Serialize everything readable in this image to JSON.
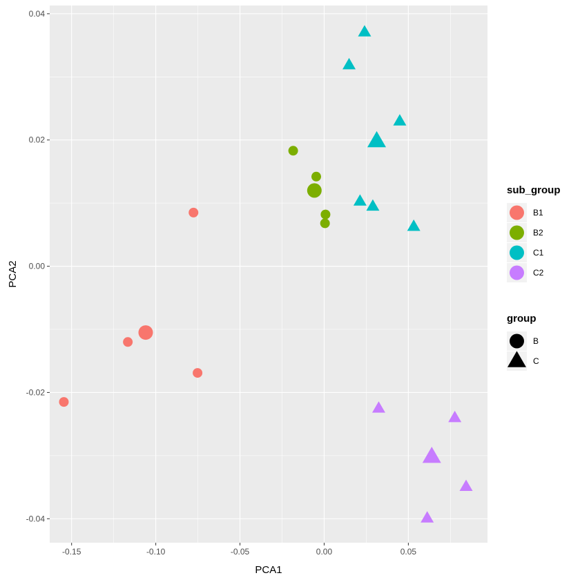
{
  "chart_data": {
    "type": "scatter",
    "xlabel": "PCA1",
    "ylabel": "PCA2",
    "xlim": [
      -0.163,
      0.097
    ],
    "ylim": [
      -0.0438,
      0.0413
    ],
    "x_ticks": [
      -0.15,
      -0.1,
      -0.05,
      0.0,
      0.05
    ],
    "x_tick_labels": [
      "-0.15",
      "-0.10",
      "-0.05",
      "0.00",
      "0.05"
    ],
    "y_ticks": [
      -0.04,
      -0.02,
      0.0,
      0.02,
      0.04
    ],
    "y_tick_labels": [
      "-0.04",
      "-0.02",
      "0.00",
      "0.02",
      "0.04"
    ],
    "grid": true,
    "panel_background": "#ebebeb",
    "legends": [
      {
        "title": "sub_group",
        "kind": "color",
        "entries": [
          {
            "label": "B1",
            "color": "#f8766d"
          },
          {
            "label": "B2",
            "color": "#7cae00"
          },
          {
            "label": "C1",
            "color": "#00bfc4"
          },
          {
            "label": "C2",
            "color": "#c77cff"
          }
        ]
      },
      {
        "title": "group",
        "kind": "shape",
        "entries": [
          {
            "label": "B",
            "shape": "circle"
          },
          {
            "label": "C",
            "shape": "triangle"
          }
        ]
      }
    ],
    "series": [
      {
        "sub_group": "B1",
        "group": "B",
        "shape": "circle",
        "color": "#f8766d",
        "points": [
          {
            "x": -0.1546,
            "y": -0.0215,
            "size": "small"
          },
          {
            "x": -0.1166,
            "y": -0.012,
            "size": "small"
          },
          {
            "x": -0.106,
            "y": -0.0105,
            "size": "large"
          },
          {
            "x": -0.0776,
            "y": 0.0085,
            "size": "small"
          },
          {
            "x": -0.0752,
            "y": -0.0169,
            "size": "small"
          }
        ]
      },
      {
        "sub_group": "B2",
        "group": "B",
        "shape": "circle",
        "color": "#7cae00",
        "points": [
          {
            "x": -0.0184,
            "y": 0.0183,
            "size": "small"
          },
          {
            "x": -0.0047,
            "y": 0.0142,
            "size": "small"
          },
          {
            "x": -0.0058,
            "y": 0.012,
            "size": "large"
          },
          {
            "x": 0.0008,
            "y": 0.0082,
            "size": "small"
          },
          {
            "x": 0.0005,
            "y": 0.0068,
            "size": "small"
          }
        ]
      },
      {
        "sub_group": "C1",
        "group": "C",
        "shape": "triangle",
        "color": "#00bfc4",
        "points": [
          {
            "x": 0.024,
            "y": 0.037,
            "size": "small"
          },
          {
            "x": 0.0148,
            "y": 0.0318,
            "size": "small"
          },
          {
            "x": 0.0449,
            "y": 0.0229,
            "size": "small"
          },
          {
            "x": 0.0312,
            "y": 0.0197,
            "size": "large"
          },
          {
            "x": 0.0213,
            "y": 0.0102,
            "size": "small"
          },
          {
            "x": 0.0289,
            "y": 0.0094,
            "size": "small"
          },
          {
            "x": 0.0532,
            "y": 0.0062,
            "size": "small"
          }
        ]
      },
      {
        "sub_group": "C2",
        "group": "C",
        "shape": "triangle",
        "color": "#c77cff",
        "points": [
          {
            "x": 0.0324,
            "y": -0.0226,
            "size": "small"
          },
          {
            "x": 0.0776,
            "y": -0.0241,
            "size": "small"
          },
          {
            "x": 0.0639,
            "y": -0.0303,
            "size": "large"
          },
          {
            "x": 0.0843,
            "y": -0.035,
            "size": "small"
          },
          {
            "x": 0.0612,
            "y": -0.04,
            "size": "small"
          }
        ]
      }
    ]
  }
}
